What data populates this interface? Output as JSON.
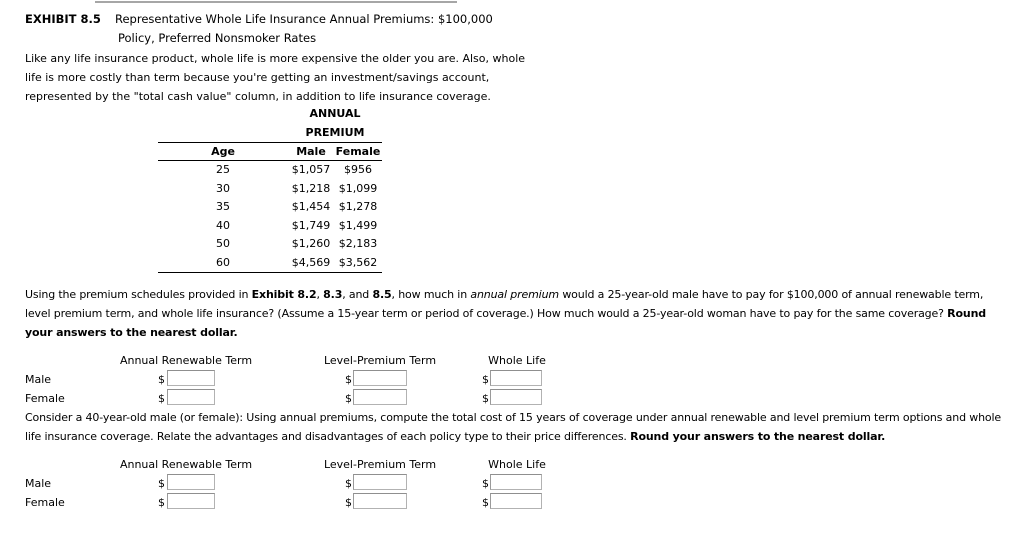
{
  "exhibit": {
    "label": "EXHIBIT 8.5",
    "title_line1": "Representative Whole Life Insurance Annual Premiums: $100,000",
    "title_line2": "Policy, Preferred Nonsmoker Rates",
    "description_lines": [
      "Like any life insurance product, whole life is more expensive the older you are. Also, whole",
      "life is more costly than term because you're getting an investment/savings account,",
      "represented by the \"total cash value\" column, in addition to life insurance coverage."
    ],
    "table": {
      "group_header": [
        "ANNUAL",
        "PREMIUM"
      ],
      "columns": [
        "Age",
        "Male",
        "Female"
      ],
      "rows": [
        [
          "25",
          "$1,057",
          "$956"
        ],
        [
          "30",
          "$1,218",
          "$1,099"
        ],
        [
          "35",
          "$1,454",
          "$1,278"
        ],
        [
          "40",
          "$1,749",
          "$1,499"
        ],
        [
          "50",
          "$1,260",
          "$2,183"
        ],
        [
          "60",
          "$4,569",
          "$3,562"
        ]
      ]
    }
  },
  "question1": {
    "lines": [
      [
        {
          "t": "Using the premium schedules provided in "
        },
        {
          "t": "Exhibit 8.2",
          "b": true
        },
        {
          "t": ", "
        },
        {
          "t": "8.3",
          "b": true
        },
        {
          "t": ", and "
        },
        {
          "t": "8.5",
          "b": true
        },
        {
          "t": ", how much in "
        },
        {
          "t": "annual premium",
          "i": true
        },
        {
          "t": " would a 25-year-old male have to pay for $100,000 of annual renewable term,"
        }
      ],
      [
        {
          "t": "level premium term, and whole life insurance? (Assume a 15-year term or period of coverage.) How much would a 25-year-old woman have to pay for the same coverage? "
        },
        {
          "t": "Round",
          "b": true
        }
      ],
      [
        {
          "t": "your answers to the nearest dollar.",
          "b": true
        }
      ]
    ]
  },
  "question2": {
    "lines": [
      [
        {
          "t": "Consider a 40-year-old male (or female): Using annual premiums, compute the total cost of 15 years of coverage under annual renewable and level premium term options and whole"
        }
      ],
      [
        {
          "t": "life insurance coverage. Relate the advantages and disadvantages of each policy type to their price differences. "
        },
        {
          "t": "Round your answers to the nearest dollar.",
          "b": true
        }
      ]
    ]
  },
  "answer_grids": {
    "column_headers": [
      "Annual Renewable Term",
      "Level-Premium Term",
      "Whole Life"
    ],
    "row_labels": [
      "Male",
      "Female"
    ],
    "currency": "$",
    "input_value": ""
  },
  "colors": {
    "text": "#000000",
    "table_border": "#000000",
    "top_rule": "#a6a6a6",
    "input_border": "#b2b2b2"
  }
}
